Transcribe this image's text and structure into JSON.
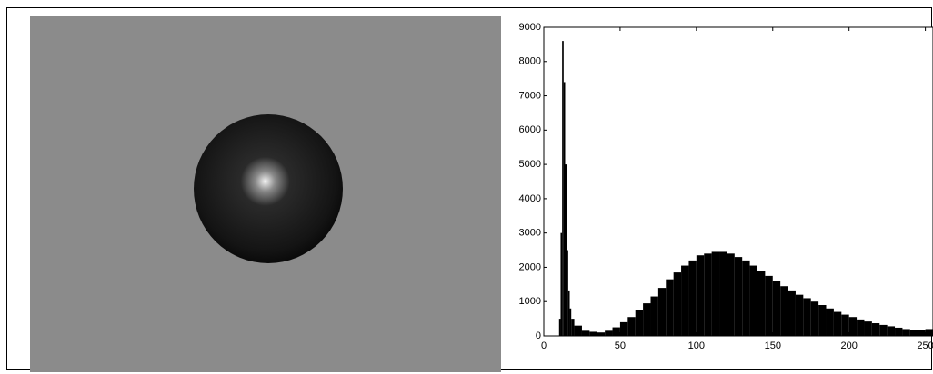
{
  "chart_data": {
    "type": "histogram",
    "bins": [
      0,
      10,
      11,
      12,
      13,
      14,
      15,
      16,
      17,
      18,
      20,
      25,
      30,
      35,
      40,
      45,
      50,
      55,
      60,
      65,
      70,
      75,
      80,
      85,
      90,
      95,
      100,
      105,
      110,
      115,
      120,
      125,
      130,
      135,
      140,
      145,
      150,
      155,
      160,
      165,
      170,
      175,
      180,
      185,
      190,
      195,
      200,
      205,
      210,
      215,
      220,
      225,
      230,
      235,
      240,
      245,
      250,
      255
    ],
    "counts": [
      0,
      500,
      3000,
      8600,
      7400,
      5000,
      2500,
      1300,
      800,
      500,
      300,
      150,
      120,
      100,
      150,
      250,
      400,
      550,
      750,
      950,
      1150,
      1400,
      1650,
      1850,
      2050,
      2200,
      2350,
      2400,
      2450,
      2450,
      2400,
      2300,
      2200,
      2050,
      1900,
      1750,
      1600,
      1450,
      1300,
      1200,
      1100,
      1000,
      900,
      800,
      700,
      620,
      550,
      480,
      420,
      370,
      320,
      280,
      240,
      200,
      180,
      170,
      200
    ],
    "color": "#000000",
    "xlim": [
      0,
      255
    ],
    "xticks": [
      0,
      50,
      100,
      150,
      200,
      250
    ],
    "ylim": [
      0,
      9000
    ],
    "yticks": [
      0,
      1000,
      2000,
      3000,
      4000,
      5000,
      6000,
      7000,
      8000,
      9000
    ]
  }
}
